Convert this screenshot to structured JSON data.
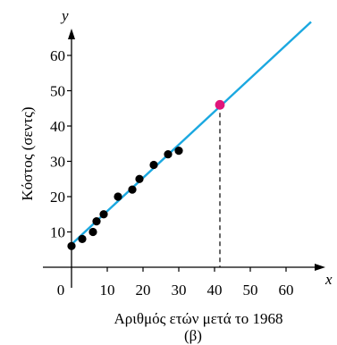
{
  "chart_data": {
    "type": "scatter",
    "xlabel": "Αριθμός ετών μετά το 1968",
    "ylabel": "Κόστος (σεντς)",
    "panel_label": "(β)",
    "x_axis_letter": "x",
    "y_axis_letter": "y",
    "x_ticks": [
      "0",
      "10",
      "20",
      "30",
      "40",
      "50",
      "60"
    ],
    "y_ticks": [
      "10",
      "20",
      "30",
      "40",
      "50",
      "60"
    ],
    "xlim": [
      0,
      70
    ],
    "ylim": [
      0,
      70
    ],
    "grid": false,
    "points": [
      {
        "x": 0,
        "y": 6
      },
      {
        "x": 3,
        "y": 8
      },
      {
        "x": 6,
        "y": 10
      },
      {
        "x": 7,
        "y": 13
      },
      {
        "x": 9,
        "y": 15
      },
      {
        "x": 13,
        "y": 20
      },
      {
        "x": 17,
        "y": 22
      },
      {
        "x": 19,
        "y": 25
      },
      {
        "x": 23,
        "y": 29
      },
      {
        "x": 27,
        "y": 32
      },
      {
        "x": 30,
        "y": 33
      }
    ],
    "regression_line": {
      "x": [
        0,
        67
      ],
      "y": [
        6.5,
        69.5
      ]
    },
    "highlight_point": {
      "x": 41.5,
      "y": 46
    },
    "colors": {
      "points": "#000000",
      "line": "#1ba8e0",
      "highlight": "#e0157a",
      "axes": "#000000",
      "guide": "#000000"
    }
  }
}
